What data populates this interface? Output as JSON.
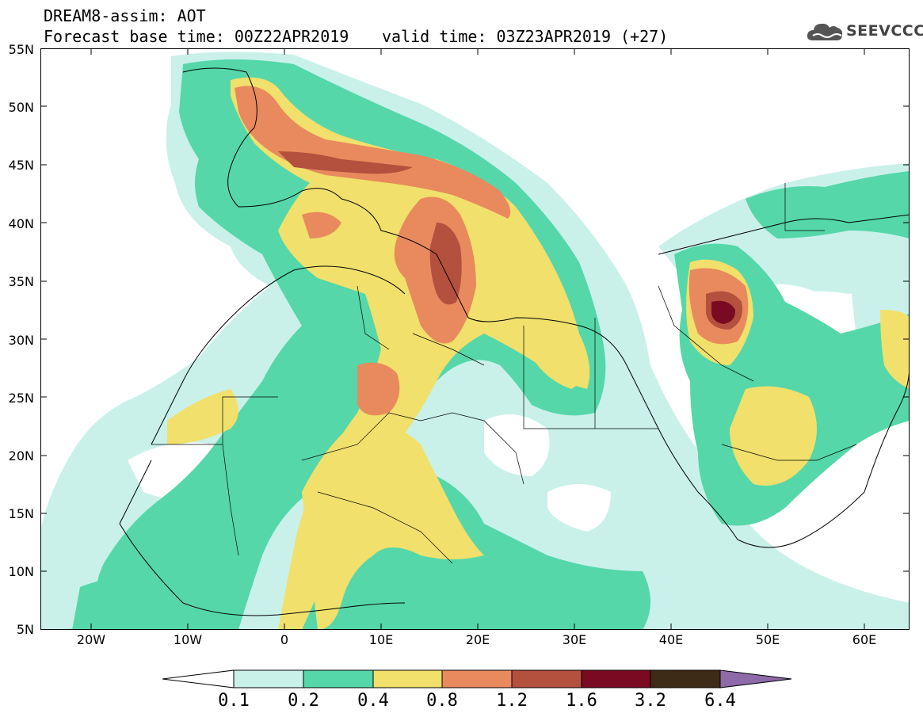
{
  "header": {
    "title": "DREAM8-assim: AOT",
    "base_time": "Forecast base time: 00Z22APR2019",
    "valid_time": "valid time: 03Z23APR2019 (+27)"
  },
  "logo": {
    "text": "SEEVCCC",
    "icon": "cloud-icon"
  },
  "axes": {
    "lat_labels": [
      "55N",
      "50N",
      "45N",
      "40N",
      "35N",
      "30N",
      "25N",
      "20N",
      "15N",
      "10N",
      "5N"
    ],
    "lon_labels": [
      "20W",
      "10W",
      "0",
      "10E",
      "20E",
      "30E",
      "40E",
      "50E",
      "60E"
    ]
  },
  "colorbar": {
    "labels": [
      "0.1",
      "0.2",
      "0.4",
      "0.8",
      "1.2",
      "1.6",
      "3.2",
      "6.4"
    ],
    "colors": [
      "#ffffff",
      "#c9f1ea",
      "#55d7a9",
      "#f1e06b",
      "#e88a5d",
      "#b4503e",
      "#7a0a22",
      "#3d2a17",
      "#8e6aa8"
    ]
  },
  "colors": {
    "c01": "#c9f1ea",
    "c02": "#55d7a9",
    "c04": "#f1e06b",
    "c08": "#e88a5d",
    "c12": "#b4503e",
    "c16": "#7a0a22"
  }
}
